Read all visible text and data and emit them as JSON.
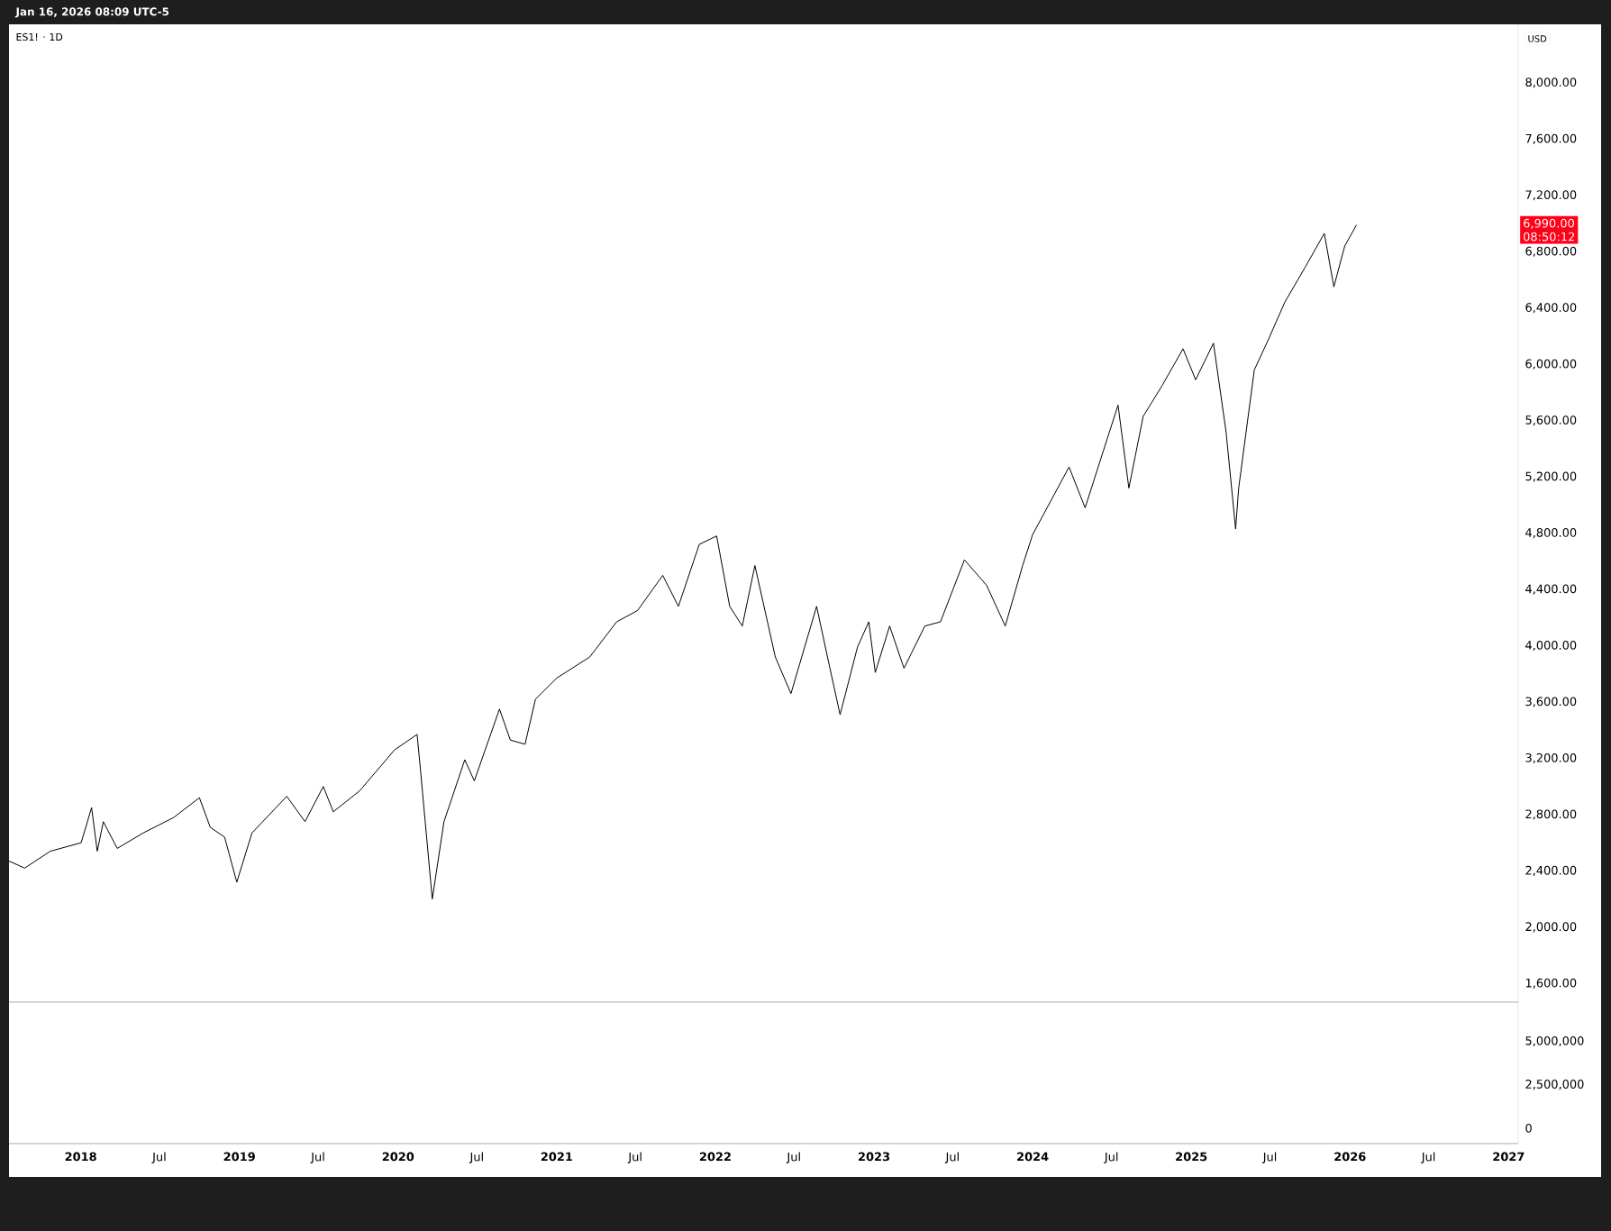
{
  "chart_data": [
    {
      "type": "line",
      "title": "ES1! · 1D",
      "subtitle": "Jan 16, 2026 08:09 UTC-5",
      "ylabel": "USD",
      "annotations": [
        "6,990.00",
        "08:50:12"
      ],
      "x": [
        "2017-07-20",
        "2017-08-25",
        "2017-10-23",
        "2018-01-02",
        "2018-01-26",
        "2018-02-08",
        "2018-02-22",
        "2018-03-26",
        "2018-05-25",
        "2018-08-03",
        "2018-10-01",
        "2018-10-26",
        "2018-11-28",
        "2018-12-26",
        "2019-01-30",
        "2019-04-20",
        "2019-06-01",
        "2019-07-13",
        "2019-08-05",
        "2019-10-05",
        "2019-12-24",
        "2020-02-14",
        "2020-02-22",
        "2020-03-20",
        "2020-04-16",
        "2020-06-03",
        "2020-06-25",
        "2020-08-22",
        "2020-09-16",
        "2020-10-20",
        "2020-11-13",
        "2021-01-01",
        "2021-03-18",
        "2021-05-19",
        "2021-07-06",
        "2021-09-02",
        "2021-10-08",
        "2021-11-25",
        "2022-01-04",
        "2022-02-03",
        "2022-03-04",
        "2022-04-02",
        "2022-05-19",
        "2022-06-24",
        "2022-08-22",
        "2022-09-16",
        "2022-10-15",
        "2022-11-24",
        "2022-12-20",
        "2023-01-04",
        "2023-02-06",
        "2023-03-11",
        "2023-04-28",
        "2023-06-03",
        "2023-07-28",
        "2023-09-17",
        "2023-10-30",
        "2023-12-09",
        "2024-01-01",
        "2024-03-25",
        "2024-05-01",
        "2024-07-16",
        "2024-08-10",
        "2024-09-12",
        "2024-10-26",
        "2024-12-13",
        "2025-01-11",
        "2025-02-21",
        "2025-03-22",
        "2025-04-13",
        "2025-04-20",
        "2025-05-26",
        "2025-06-28",
        "2025-08-04",
        "2025-09-20",
        "2025-11-03",
        "2025-11-25",
        "2025-12-20",
        "2026-01-16"
      ],
      "series": [
        {
          "color": "#000000",
          "values": [
            2470,
            2420,
            2540,
            2600,
            2850,
            2540,
            2750,
            2560,
            2670,
            2780,
            2920,
            2710,
            2640,
            2320,
            2670,
            2930,
            2750,
            3000,
            2820,
            2970,
            3260,
            3370,
            3110,
            2200,
            2750,
            3190,
            3040,
            3550,
            3330,
            3300,
            3620,
            3770,
            3920,
            4170,
            4250,
            4500,
            4280,
            4720,
            4780,
            4280,
            4140,
            4570,
            3920,
            3660,
            4280,
            3920,
            3510,
            3990,
            4170,
            3810,
            4140,
            3840,
            4140,
            4170,
            4610,
            4430,
            4140,
            4570,
            4790,
            5270,
            4980,
            5710,
            5120,
            5630,
            5850,
            6110,
            5890,
            6150,
            5520,
            4830,
            5120,
            5960,
            6180,
            6440,
            6690,
            6930,
            6550,
            6840,
            6990
          ]
        }
      ],
      "xlim": [
        "2017-07-20",
        "2027-01-23"
      ],
      "xticks": [
        {
          "value": "2018-01-01",
          "label": null
        },
        {
          "value": "2018-07-01",
          "label": null
        },
        {
          "value": "2019-01-01",
          "label": null
        },
        {
          "value": "2019-07-01",
          "label": null
        },
        {
          "value": "2020-01-01",
          "label": null
        },
        {
          "value": "2020-07-01",
          "label": null
        },
        {
          "value": "2021-01-01",
          "label": null
        },
        {
          "value": "2021-07-01",
          "label": null
        },
        {
          "value": "2022-01-01",
          "label": null
        },
        {
          "value": "2022-07-01",
          "label": null
        },
        {
          "value": "2023-01-01",
          "label": null
        },
        {
          "value": "2023-07-01",
          "label": null
        },
        {
          "value": "2024-01-01",
          "label": null
        },
        {
          "value": "2024-07-01",
          "label": null
        },
        {
          "value": "2025-01-01",
          "label": null
        },
        {
          "value": "2025-07-01",
          "label": null
        },
        {
          "value": "2026-01-01",
          "label": null
        },
        {
          "value": "2026-07-01",
          "label": null
        },
        {
          "value": "2027-01-01",
          "label": null
        }
      ],
      "ylim": [
        1468,
        8416
      ],
      "yticks": [
        {
          "value": 1600,
          "label": "1,600.00"
        },
        {
          "value": 2000,
          "label": "2,000.00"
        },
        {
          "value": 2400,
          "label": "2,400.00"
        },
        {
          "value": 2800,
          "label": "2,800.00"
        },
        {
          "value": 3200,
          "label": "3,200.00"
        },
        {
          "value": 3600,
          "label": "3,600.00"
        },
        {
          "value": 4000,
          "label": "4,000.00"
        },
        {
          "value": 4400,
          "label": "4,400.00"
        },
        {
          "value": 4800,
          "label": "4,800.00"
        },
        {
          "value": 5200,
          "label": "5,200.00"
        },
        {
          "value": 5600,
          "label": "5,600.00"
        },
        {
          "value": 6000,
          "label": "6,000.00"
        },
        {
          "value": 6400,
          "label": "6,400.00"
        },
        {
          "value": 6800,
          "label": "6,800.00"
        },
        {
          "value": 7200,
          "label": "7,200.00"
        },
        {
          "value": 7600,
          "label": "7,600.00"
        },
        {
          "value": 8000,
          "label": "8,000.00"
        }
      ],
      "tick_labels": "y"
    },
    {
      "type": "bar",
      "xlim": [
        "2017-07-20",
        "2027-01-23"
      ],
      "xticks": [
        {
          "value": "2018-01-01",
          "label": "2018"
        },
        {
          "value": "2018-07-01",
          "label": "Jul"
        },
        {
          "value": "2019-01-01",
          "label": "2019"
        },
        {
          "value": "2019-07-01",
          "label": "Jul"
        },
        {
          "value": "2020-01-01",
          "label": "2020"
        },
        {
          "value": "2020-07-01",
          "label": "Jul"
        },
        {
          "value": "2021-01-01",
          "label": "2021"
        },
        {
          "value": "2021-07-01",
          "label": "Jul"
        },
        {
          "value": "2022-01-01",
          "label": "2022"
        },
        {
          "value": "2022-07-01",
          "label": "Jul"
        },
        {
          "value": "2023-01-01",
          "label": "2023"
        },
        {
          "value": "2023-07-01",
          "label": "Jul"
        },
        {
          "value": "2024-01-01",
          "label": "2024"
        },
        {
          "value": "2024-07-01",
          "label": "Jul"
        },
        {
          "value": "2025-01-01",
          "label": "2025"
        },
        {
          "value": "2025-07-01",
          "label": "Jul"
        },
        {
          "value": "2026-01-01",
          "label": "2026"
        },
        {
          "value": "2026-07-01",
          "label": "Jul"
        },
        {
          "value": "2027-01-01",
          "label": "2027"
        }
      ],
      "ylim": [
        -890000,
        7260000
      ],
      "yticks": [
        {
          "value": 0,
          "label": "0"
        },
        {
          "value": 2500000,
          "label": "2,500,000"
        },
        {
          "value": 5000000,
          "label": "5,000,000"
        }
      ]
    }
  ]
}
